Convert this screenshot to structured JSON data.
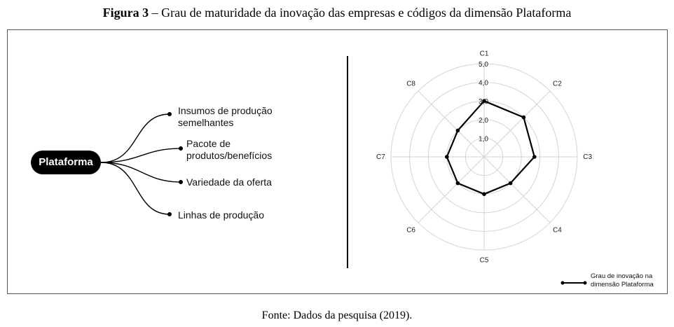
{
  "caption": {
    "figure_label": "Figura 3",
    "text": " – Grau de maturidade da inovação das empresas e códigos da dimensão Plataforma"
  },
  "source": "Fonte: Dados da pesquisa (2019).",
  "mindmap": {
    "root": "Plataforma",
    "branches": [
      {
        "line1": "Insumos de produção",
        "line2": "semelhantes"
      },
      {
        "line1": "Pacote de",
        "line2": "produtos/benefícios"
      },
      {
        "line1": "Variedade da oferta",
        "line2": ""
      },
      {
        "line1": "Linhas de produção",
        "line2": ""
      }
    ]
  },
  "chart_data": {
    "type": "radar",
    "axes": [
      "C1",
      "C2",
      "C3",
      "C4",
      "C5",
      "C6",
      "C7",
      "C8"
    ],
    "ticks": [
      "1,0",
      "2,0",
      "3,0",
      "4,0",
      "5,0"
    ],
    "rmax": 5,
    "series": [
      {
        "name": "Grau de inovação na dimensão Plataforma",
        "values": [
          3.0,
          3.0,
          2.7,
          2.0,
          2.0,
          2.0,
          2.0,
          2.0
        ]
      }
    ],
    "legend": {
      "line1": "Grau de inovação na",
      "line2": "dimensão Plataforma",
      "placement": "bottom-right"
    },
    "grid": true
  }
}
